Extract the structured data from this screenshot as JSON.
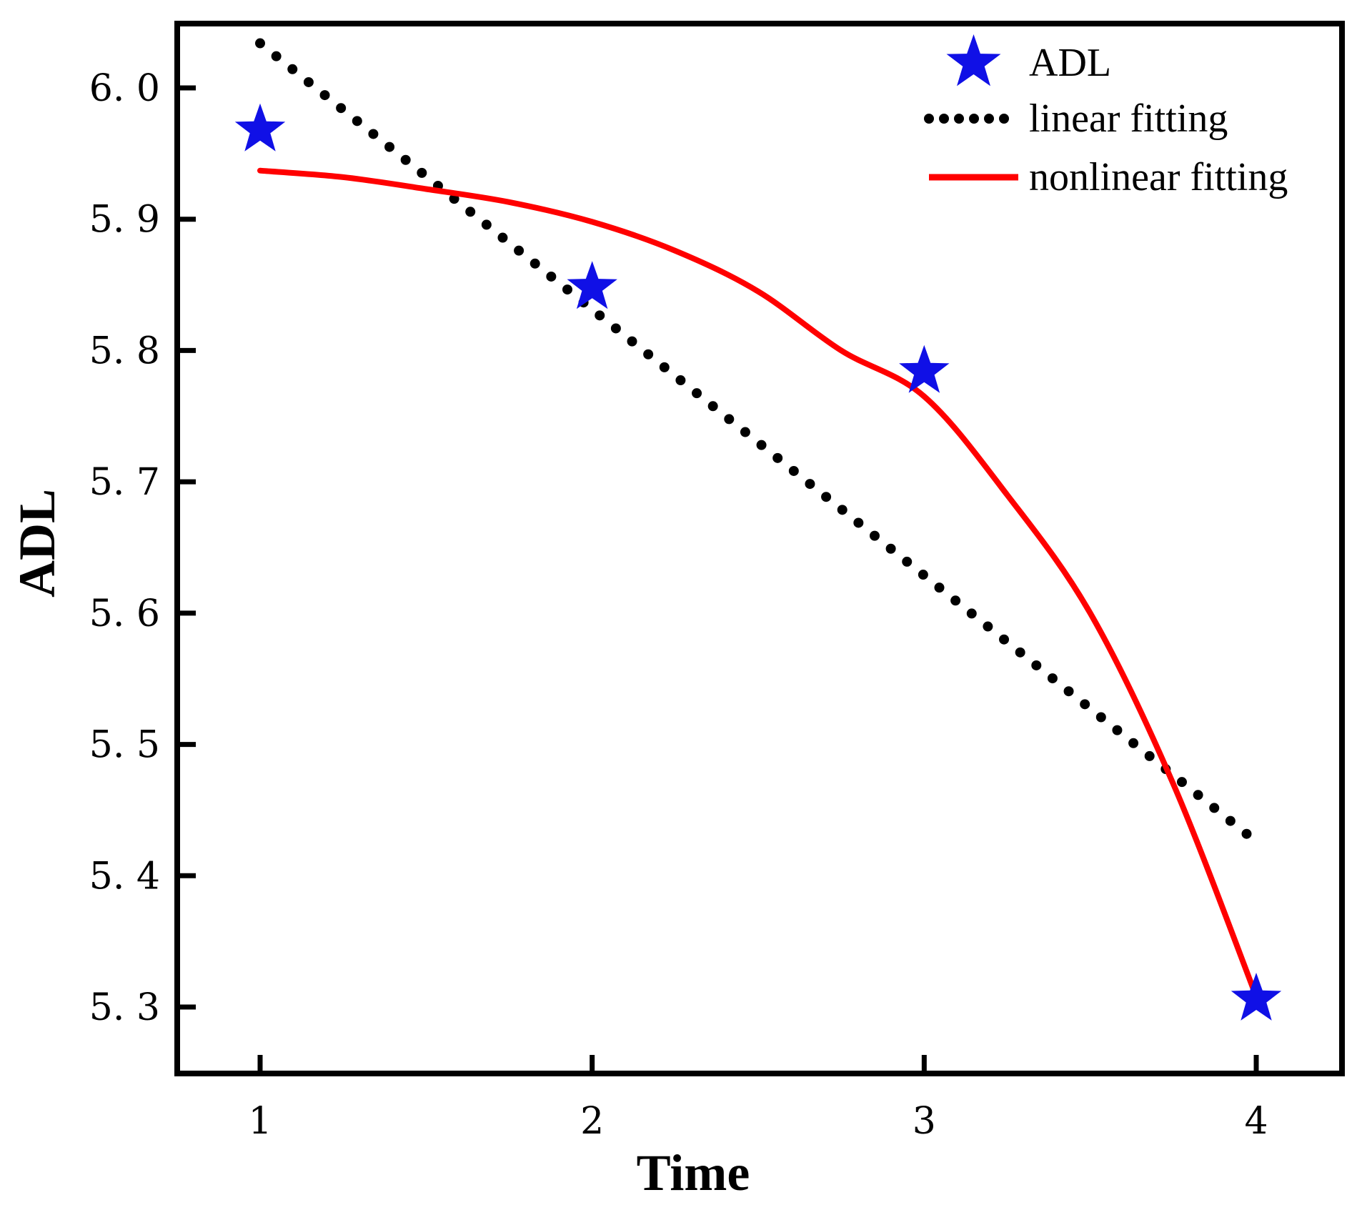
{
  "chart_data": {
    "type": "scatter",
    "title": "",
    "xlabel": "Time",
    "ylabel": "ADL",
    "xlim": [
      0.75,
      4.25
    ],
    "ylim": [
      5.252,
      6.05
    ],
    "x_ticks": [
      1,
      2,
      3,
      4
    ],
    "x_tick_labels": [
      "1",
      "2",
      "3",
      "4"
    ],
    "y_ticks": [
      5.3,
      5.4,
      5.5,
      5.6,
      5.7,
      5.8,
      5.9,
      6.0
    ],
    "y_tick_labels": [
      "5. 3",
      "5. 4",
      "5. 5",
      "5. 6",
      "5. 7",
      "5. 8",
      "5. 9",
      "6. 0"
    ],
    "grid": false,
    "legend_position": "top-right",
    "series": [
      {
        "name": "ADL",
        "kind": "scatter",
        "marker": "star",
        "color": "#1010e6",
        "x": [
          1,
          2,
          3,
          4
        ],
        "y": [
          5.968,
          5.848,
          5.784,
          5.306
        ]
      },
      {
        "name": "linear fitting",
        "kind": "line",
        "style": "dotted",
        "color": "#000000",
        "x": [
          1,
          4
        ],
        "y": [
          6.034,
          5.426
        ]
      },
      {
        "name": "nonlinear fitting",
        "kind": "line",
        "style": "solid",
        "color": "#ff0000",
        "x": [
          1.0,
          1.25,
          1.5,
          1.75,
          2.0,
          2.25,
          2.5,
          2.75,
          3.0,
          3.25,
          3.5,
          3.75,
          4.0
        ],
        "y": [
          5.937,
          5.932,
          5.923,
          5.913,
          5.898,
          5.876,
          5.845,
          5.8,
          5.765,
          5.69,
          5.6,
          5.47,
          5.308
        ]
      }
    ]
  }
}
